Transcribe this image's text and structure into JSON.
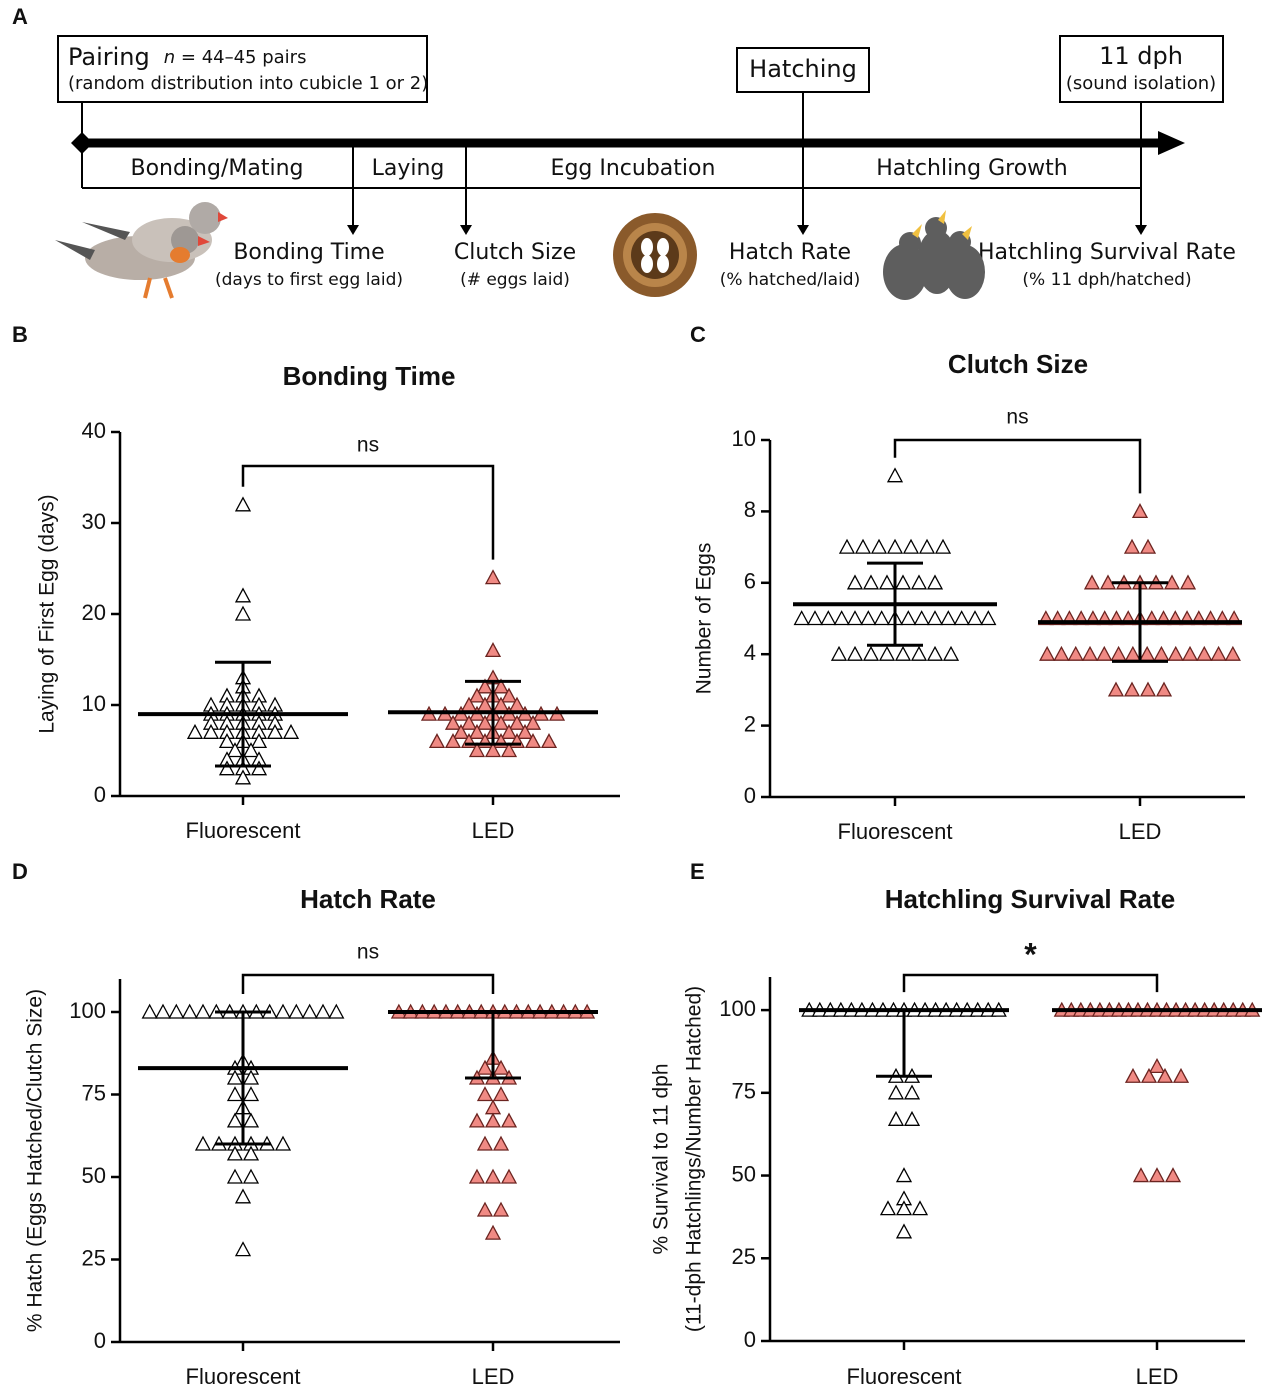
{
  "panel_a": {
    "label": "A",
    "pairing": {
      "title": "Pairing",
      "n": "n",
      "count": " = 44–45 pairs",
      "note": "(random distribution into cubicle 1 or 2)"
    },
    "hatching": "Hatching",
    "isolation": {
      "title": "11 dph",
      "note": "(sound isolation)"
    },
    "phases": [
      "Bonding/Mating",
      "Laying",
      "Egg Incubation",
      "Hatchling Growth"
    ],
    "measures": [
      {
        "title": "Bonding Time",
        "note": "(days to first egg laid)"
      },
      {
        "title": "Clutch Size",
        "note": "(# eggs laid)"
      },
      {
        "title": "Hatch Rate",
        "note": "(% hatched/laid)"
      },
      {
        "title": "Hatchling Survival Rate",
        "note": "(% 11 dph/hatched)"
      }
    ]
  },
  "chart_data": [
    {
      "type": "scatter",
      "label": "B",
      "title": "Bonding Time",
      "ylabel": [
        "Laying of First Egg (days)"
      ],
      "categories": [
        "Fluorescent",
        "LED"
      ],
      "significance": "ns",
      "ylim": [
        0,
        40
      ],
      "yticks": [
        0,
        10,
        20,
        30,
        40
      ],
      "groups": [
        {
          "color": "#ffffff",
          "edgecolor": "#000000",
          "center": 9,
          "lower": 3.3,
          "upper": 14.7,
          "values": [
            32,
            22,
            20,
            13,
            12,
            11,
            11,
            11,
            10,
            10,
            10,
            10,
            10,
            9,
            9,
            9,
            9,
            9,
            8,
            8,
            8,
            8,
            8,
            7,
            7,
            7,
            7,
            7,
            7,
            7,
            6,
            6,
            6,
            5,
            5,
            4,
            4,
            4,
            3,
            3,
            3,
            2
          ]
        },
        {
          "color": "#f08a84",
          "edgecolor": "#6b2420",
          "center": 9.2,
          "lower": 5.7,
          "upper": 12.6,
          "values": [
            24,
            16,
            13,
            12,
            12,
            11,
            11,
            11,
            10,
            10,
            10,
            10,
            9,
            9,
            9,
            9,
            9,
            9,
            9,
            9,
            9,
            8,
            8,
            8,
            8,
            8,
            8,
            7,
            7,
            7,
            7,
            7,
            6,
            6,
            6,
            6,
            6,
            6,
            6,
            6,
            5,
            5,
            5
          ]
        }
      ]
    },
    {
      "type": "scatter",
      "label": "C",
      "title": "Clutch Size",
      "ylabel": [
        "Number of Eggs"
      ],
      "categories": [
        "Fluorescent",
        "LED"
      ],
      "significance": "ns",
      "ylim": [
        0,
        10
      ],
      "yticks": [
        0,
        2,
        4,
        6,
        8,
        10
      ],
      "groups": [
        {
          "color": "#ffffff",
          "edgecolor": "#000000",
          "center": 5.4,
          "lower": 4.25,
          "upper": 6.55,
          "values": [
            9,
            7,
            7,
            7,
            7,
            7,
            7,
            7,
            6,
            6,
            6,
            6,
            6,
            6,
            5,
            5,
            5,
            5,
            5,
            5,
            5,
            5,
            5,
            5,
            5,
            5,
            5,
            5,
            5,
            4,
            4,
            4,
            4,
            4,
            4,
            4,
            4
          ]
        },
        {
          "color": "#f08a84",
          "edgecolor": "#6b2420",
          "center": 4.9,
          "lower": 3.8,
          "upper": 6.0,
          "values": [
            8,
            7,
            7,
            6,
            6,
            6,
            6,
            6,
            6,
            6,
            5,
            5,
            5,
            5,
            5,
            5,
            5,
            5,
            5,
            5,
            5,
            5,
            5,
            5,
            5,
            5,
            5,
            4,
            4,
            4,
            4,
            4,
            4,
            4,
            4,
            4,
            4,
            4,
            4,
            4,
            4,
            3,
            3,
            3,
            3
          ]
        }
      ]
    },
    {
      "type": "scatter",
      "label": "D",
      "title": "Hatch Rate",
      "ylabel": [
        "% Hatch (Eggs Hatched/Clutch Size)"
      ],
      "categories": [
        "Fluorescent",
        "LED"
      ],
      "significance": "ns",
      "ylim": [
        0,
        110
      ],
      "yticks": [
        0,
        25,
        50,
        75,
        100
      ],
      "groups": [
        {
          "color": "#ffffff",
          "edgecolor": "#000000",
          "center": 83,
          "lower": 60,
          "upper": 100,
          "values": [
            100,
            100,
            100,
            100,
            100,
            100,
            100,
            100,
            100,
            100,
            100,
            100,
            100,
            100,
            100,
            85,
            83,
            83,
            80,
            80,
            75,
            75,
            71,
            67,
            67,
            60,
            60,
            60,
            60,
            60,
            60,
            57,
            57,
            50,
            50,
            44,
            28
          ]
        },
        {
          "color": "#f08a84",
          "edgecolor": "#6b2420",
          "center": 100,
          "lower": 80,
          "upper": 100,
          "values": [
            100,
            100,
            100,
            100,
            100,
            100,
            100,
            100,
            100,
            100,
            100,
            100,
            100,
            100,
            100,
            100,
            100,
            86,
            83,
            83,
            80,
            80,
            80,
            75,
            75,
            71,
            67,
            67,
            67,
            60,
            60,
            50,
            50,
            50,
            40,
            40,
            33
          ]
        }
      ]
    },
    {
      "type": "scatter",
      "label": "E",
      "title": "Hatchling Survival Rate",
      "ylabel": [
        "% Survival to 11 dph",
        "(11-dph Hatchlings/Number Hatched)"
      ],
      "categories": [
        "Fluorescent",
        "LED"
      ],
      "significance": "*",
      "ylim": [
        0,
        110
      ],
      "yticks": [
        0,
        25,
        50,
        75,
        100
      ],
      "groups": [
        {
          "color": "#ffffff",
          "edgecolor": "#000000",
          "center": 100,
          "lower": 80,
          "upper": 100,
          "values": [
            100,
            100,
            100,
            100,
            100,
            100,
            100,
            100,
            100,
            100,
            100,
            100,
            100,
            100,
            100,
            100,
            100,
            100,
            100,
            80,
            80,
            75,
            75,
            67,
            67,
            50,
            43,
            40,
            40,
            40,
            33
          ]
        },
        {
          "color": "#f08a84",
          "edgecolor": "#6b2420",
          "center": 100,
          "lower": 100,
          "upper": 100,
          "values": [
            100,
            100,
            100,
            100,
            100,
            100,
            100,
            100,
            100,
            100,
            100,
            100,
            100,
            100,
            100,
            100,
            100,
            100,
            100,
            100,
            100,
            83,
            80,
            80,
            80,
            80,
            50,
            50,
            50
          ]
        }
      ]
    }
  ]
}
